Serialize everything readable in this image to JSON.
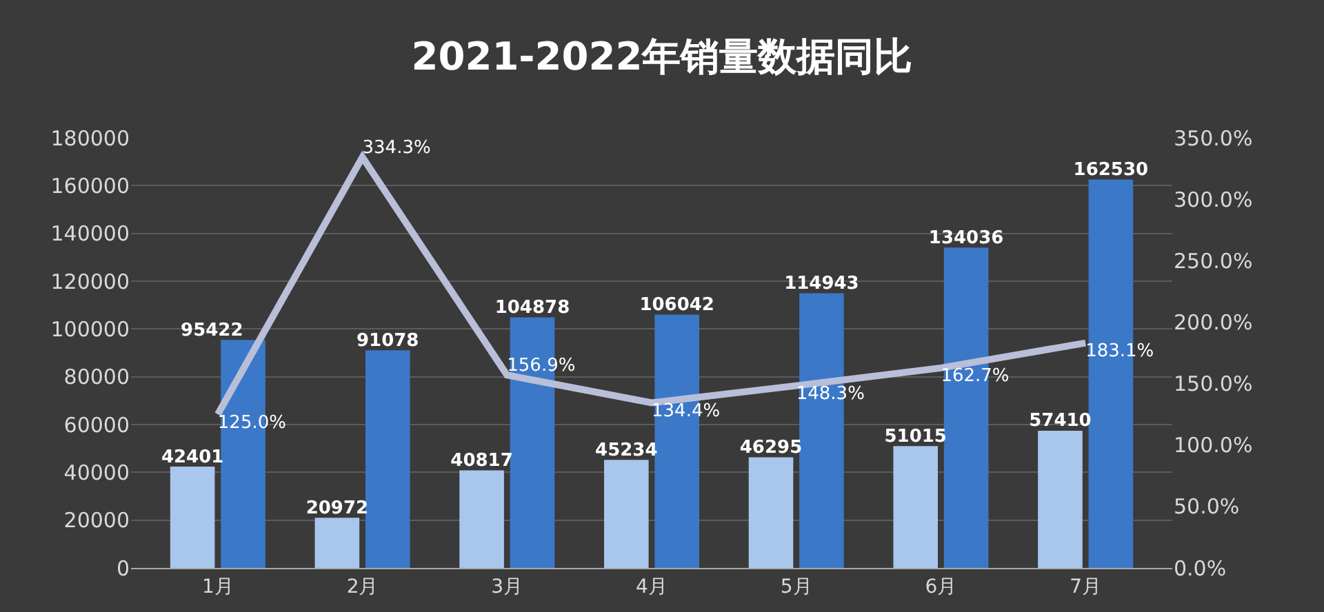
{
  "chart_data": {
    "type": "bar",
    "title": "2021-2022年销量数据同比",
    "categories": [
      "1月",
      "2月",
      "3月",
      "4月",
      "5月",
      "6月",
      "7月"
    ],
    "series": [
      {
        "color": "#a9c6ec",
        "values": [
          42401,
          20972,
          40817,
          45234,
          46295,
          51015,
          57410
        ]
      },
      {
        "color": "#3b78c8",
        "values": [
          95422,
          91078,
          104878,
          106042,
          114943,
          134036,
          162530
        ]
      },
      {
        "type": "line",
        "axis": "y2",
        "color": "#b9bfd9",
        "values": [
          125.0,
          334.3,
          156.9,
          134.4,
          148.3,
          162.7,
          183.1
        ],
        "value_labels": [
          "125.0%",
          "334.3%",
          "156.9%",
          "134.4%",
          "148.3%",
          "162.7%",
          "183.1%"
        ]
      }
    ],
    "data_labels": true,
    "ylim": [
      0,
      180000
    ],
    "yticks": [
      0,
      20000,
      40000,
      60000,
      80000,
      100000,
      120000,
      140000,
      160000,
      180000
    ],
    "y2lim": [
      0,
      350
    ],
    "y2ticks": [
      {
        "value": 0,
        "label": "0.0%"
      },
      {
        "value": 50,
        "label": "50.0%"
      },
      {
        "value": 100,
        "label": "100.0%"
      },
      {
        "value": 150,
        "label": "150.0%"
      },
      {
        "value": 200,
        "label": "200.0%"
      },
      {
        "value": 250,
        "label": "250.0%"
      },
      {
        "value": 300,
        "label": "300.0%"
      },
      {
        "value": 350,
        "label": "350.0%"
      }
    ],
    "grid": "y",
    "marker": "none",
    "line_style": "solid"
  }
}
